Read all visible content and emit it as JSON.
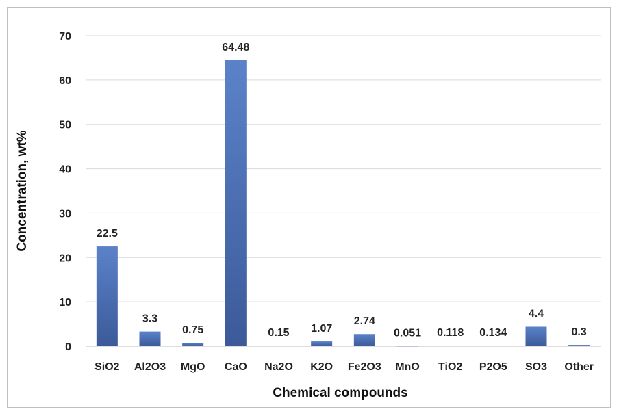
{
  "chart_data": {
    "type": "bar",
    "title": "",
    "xlabel": "Chemical compounds",
    "ylabel": "Concentration, wt%",
    "ylim": [
      0,
      70
    ],
    "yticks": [
      0,
      10,
      20,
      30,
      40,
      50,
      60,
      70
    ],
    "grid": true,
    "legend": "none",
    "bar_color": "#4a6fb5",
    "categories": [
      "SiO2",
      "Al2O3",
      "MgO",
      "CaO",
      "Na2O",
      "K2O",
      "Fe2O3",
      "MnO",
      "TiO2",
      "P2O5",
      "SO3",
      "Other"
    ],
    "values": [
      22.5,
      3.3,
      0.75,
      64.48,
      0.15,
      1.07,
      2.74,
      0.051,
      0.118,
      0.134,
      4.4,
      0.3
    ],
    "data_labels": [
      "22.5",
      "3.3",
      "0.75",
      "64.48",
      "0.15",
      "1.07",
      "2.74",
      "0.051",
      "0.118",
      "0.134",
      "4.4",
      "0.3"
    ]
  }
}
